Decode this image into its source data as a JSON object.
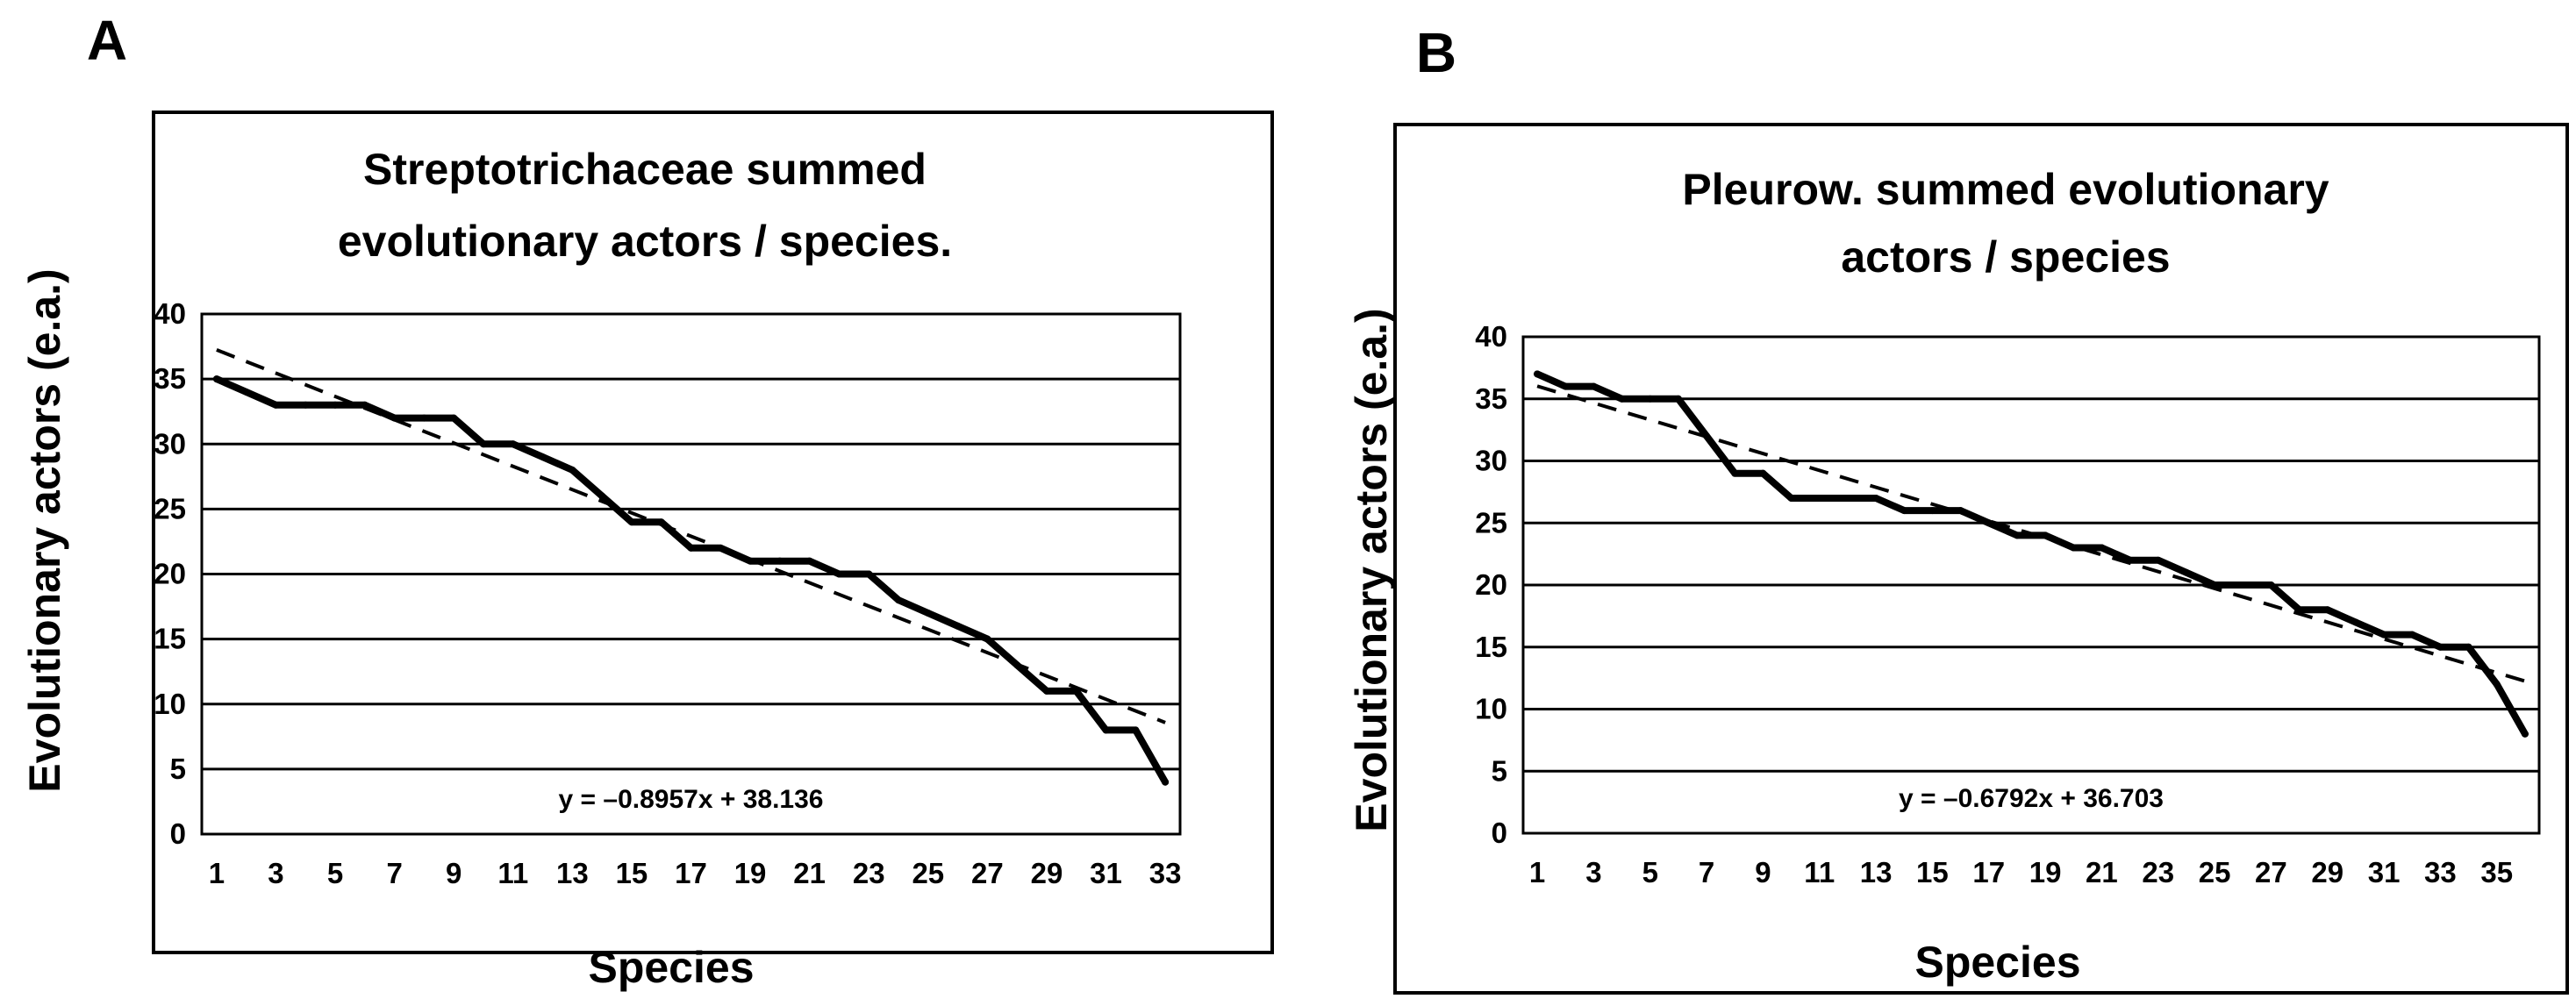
{
  "chart_data": [
    {
      "type": "line",
      "panel": "A",
      "title": [
        "Streptotrichaceae summed",
        "evolutionary actors / species."
      ],
      "xlabel": "Species",
      "ylabel": "Evolutionary actors (e.a.)",
      "x_tick_labels": [
        "1",
        "3",
        "5",
        "7",
        "9",
        "11",
        "13",
        "15",
        "17",
        "19",
        "21",
        "23",
        "25",
        "27",
        "29",
        "31",
        "33"
      ],
      "y_ticks": [
        0,
        5,
        10,
        15,
        20,
        25,
        30,
        35,
        40
      ],
      "ylim": [
        0,
        40
      ],
      "grid": "horizontal",
      "series": [
        {
          "name": "Summed evolutionary actors",
          "style": "solid",
          "values": [
            35,
            34,
            33,
            33,
            33,
            33,
            32,
            32,
            32,
            30,
            30,
            29,
            28,
            26,
            24,
            24,
            22,
            22,
            21,
            21,
            21,
            20,
            20,
            18,
            17,
            16,
            15,
            13,
            11,
            11,
            8,
            8,
            4
          ]
        },
        {
          "name": "Linear trend",
          "style": "dashed",
          "slope": -0.8957,
          "intercept": 38.136
        }
      ],
      "equation": "y = –0.8957x + 38.136"
    },
    {
      "type": "line",
      "panel": "B",
      "title": [
        "Pleurow. summed evolutionary",
        "actors / species"
      ],
      "xlabel": "Species",
      "ylabel": "Evolutionary actors (e.a.)",
      "x_tick_labels": [
        "1",
        "3",
        "5",
        "7",
        "9",
        "11",
        "13",
        "15",
        "17",
        "19",
        "21",
        "23",
        "25",
        "27",
        "29",
        "31",
        "33",
        "35"
      ],
      "y_ticks": [
        0,
        5,
        10,
        15,
        20,
        25,
        30,
        35,
        40
      ],
      "ylim": [
        0,
        40
      ],
      "grid": "horizontal",
      "series": [
        {
          "name": "Summed evolutionary actors",
          "style": "solid",
          "values": [
            37,
            36,
            36,
            35,
            35,
            35,
            32,
            29,
            29,
            27,
            27,
            27,
            27,
            26,
            26,
            26,
            25,
            24,
            24,
            23,
            23,
            22,
            22,
            21,
            20,
            20,
            20,
            18,
            18,
            17,
            16,
            16,
            15,
            15,
            12,
            8
          ]
        },
        {
          "name": "Linear trend",
          "style": "dashed",
          "slope": -0.6792,
          "intercept": 36.703
        }
      ],
      "equation": "y = –0.6792x + 36.703"
    }
  ]
}
